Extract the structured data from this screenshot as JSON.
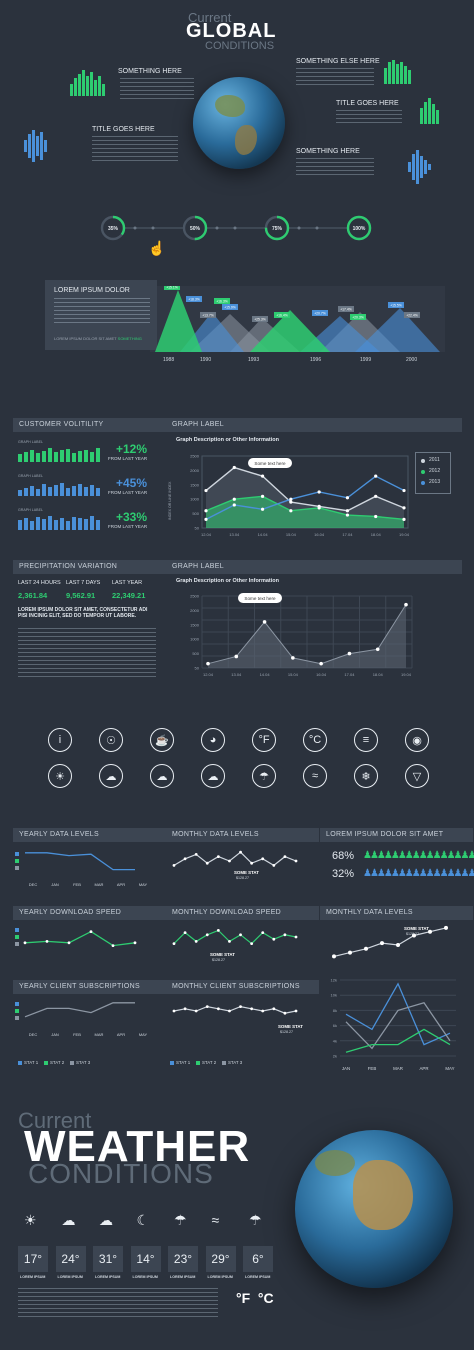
{
  "header": {
    "current": "Current",
    "global": "GLOBAL",
    "conditions": "CONDITIONS"
  },
  "globe_labels": {
    "something_here": "SOMETHING HERE",
    "something_else_here": "SOMETHING ELSE HERE",
    "title_goes_here_left": "TITLE GOES HERE",
    "title_goes_here_right": "TITLE GOES HERE",
    "something_here_right": "SOMETHING HERE"
  },
  "progress": {
    "steps": [
      "35%",
      "50%",
      "75%",
      "100%"
    ],
    "fractions": [
      0.35,
      0.5,
      0.75,
      1.0
    ]
  },
  "area_panel": {
    "title": "LOREM IPSUM DOLOR",
    "footer": "LOREM IPSUM DOLOR SIT AMET",
    "footer_accent": "SOMETHING",
    "years": [
      "1988",
      "1990",
      "1993",
      "1996",
      "1999",
      "2000"
    ],
    "tags": [
      "+15.1%",
      "+18.3%",
      "+13.7%",
      "+16.3%",
      "+15.9%",
      "+25.3%",
      "+16.4%",
      "+20.7%",
      "+17.4%",
      "+20.3%",
      "+15.5%",
      "+22.4%"
    ]
  },
  "customer": {
    "title": "CUSTOMER VOLITILITY",
    "rows": [
      {
        "label": "GRAPH LABEL",
        "pct": "+12%",
        "note": "FROM LAST YEAR"
      },
      {
        "label": "GRAPH LABEL",
        "pct": "+45%",
        "note": "FROM LAST YEAR"
      },
      {
        "label": "GRAPH LABEL",
        "pct": "+33%",
        "note": "FROM LAST YEAR"
      }
    ]
  },
  "graph1": {
    "title": "GRAPH LABEL",
    "desc": "Graph Description or Other Information",
    "callout": "Some text here",
    "ylabel": "INDEX OR LINE INDEX",
    "legend": [
      "2011",
      "2012",
      "2013"
    ],
    "legend_colors": [
      "#cfd6de",
      "#2ecc71",
      "#4a90d9"
    ]
  },
  "precip": {
    "title": "PRECIPITATION VARIATION",
    "heads": [
      "LAST 24 HOURS",
      "LAST 7 DAYS",
      "LAST YEAR"
    ],
    "values": [
      "2,361.84",
      "9,562.91",
      "22,349.21"
    ],
    "bold": "LOREM IPSUM DOLOR SIT AMET, CONSECTETUR ADI PISI INCINIG ELIT, SED DO TEMPOR UT LABORE."
  },
  "graph2": {
    "title": "GRAPH LABEL",
    "desc": "Graph Description or Other Information",
    "callout": "Some text here"
  },
  "chart_data": [
    {
      "type": "line",
      "x": [
        "12.04",
        "13.04",
        "14.04",
        "15.04",
        "16.04",
        "17.04",
        "18.04",
        "19.04"
      ],
      "ylim": [
        0,
        2500
      ],
      "yticks": [
        "2500",
        "2000",
        "1500",
        "1000",
        "500",
        "50"
      ],
      "series": [
        {
          "name": "2011",
          "values": [
            1300,
            2100,
            1800,
            900,
            750,
            600,
            1100,
            700
          ]
        },
        {
          "name": "2012",
          "values": [
            600,
            1000,
            1100,
            600,
            700,
            450,
            400,
            300
          ]
        },
        {
          "name": "2013",
          "values": [
            300,
            800,
            650,
            1000,
            1250,
            1050,
            1800,
            1300
          ]
        }
      ]
    },
    {
      "type": "area",
      "x": [
        "12.04",
        "13.04",
        "14.04",
        "15.04",
        "16.04",
        "17.04",
        "18.04",
        "19.04"
      ],
      "ylim": [
        0,
        2500
      ],
      "yticks": [
        "2500",
        "2000",
        "1500",
        "1000",
        "500",
        "50"
      ],
      "series": [
        {
          "values": [
            150,
            400,
            1600,
            350,
            150,
            500,
            650,
            2200
          ]
        }
      ]
    },
    {
      "type": "line",
      "title": "YEARLY DATA LEVELS",
      "categories": [
        "DEC",
        "JAN",
        "FEB",
        "MAR",
        "APR",
        "MAY"
      ],
      "series": [
        {
          "values": [
            0.9,
            0.9,
            0.8,
            0.85,
            0.3,
            0.3
          ]
        }
      ]
    }
  ],
  "icons_row1": [
    "info-icon",
    "lightbulb-icon",
    "footprints-icon",
    "piggy-bank-icon",
    "fahrenheit-icon",
    "celsius-icon",
    "traffic-light-icon",
    "broadcast-icon"
  ],
  "icons_row1_glyphs": [
    "i",
    "☉",
    "☕",
    "◕",
    "°F",
    "°C",
    "≡",
    "◉"
  ],
  "icons_row2": [
    "sun-icon",
    "cloud-sun-icon",
    "cloud-icon",
    "partly-cloudy-icon",
    "rain-icon",
    "wind-icon",
    "snow-icon",
    "tornado-icon"
  ],
  "icons_row2_glyphs": [
    "☀",
    "☁",
    "☁",
    "☁",
    "☂",
    "≈",
    "❄",
    "▽"
  ],
  "small_panels": {
    "yearly_data": "YEARLY DATA LEVELS",
    "monthly_data": "MONTHLY DATA LEVELS",
    "lorem": "LOREM IPSUM DOLOR SIT AMET",
    "pct_a": "68%",
    "pct_b": "32%",
    "yearly_download": "YEARLY DOWNLOAD SPEED",
    "monthly_download": "MONTHLY DOWNLOAD SPEED",
    "monthly_data2": "MONTHLY DATA LEVELS",
    "yearly_client": "YEARLY CLIENT SUBSCRIPTIONS",
    "monthly_client": "MONTHLY CLIENT SUBSCRIPTIONS",
    "some_stat": "SOME STAT",
    "some_stat_value": "$128.27",
    "months": [
      "DEC",
      "JAN",
      "FEB",
      "MAR",
      "APR",
      "MAY"
    ],
    "big_months": [
      "JAN",
      "FEB",
      "MAR",
      "APR",
      "MAY"
    ],
    "big_yticks": [
      "12k",
      "10k",
      "8k",
      "6k",
      "4k",
      "2k"
    ],
    "stats": [
      "STAT 1",
      "STAT 2",
      "STAT 3"
    ]
  },
  "weather": {
    "current": "Current",
    "weather": "WEATHER",
    "conditions": "CONDITIONS",
    "temps": [
      "17°",
      "24°",
      "31°",
      "14°",
      "23°",
      "29°",
      "6°"
    ],
    "temp_label": "LOREM IPSUM",
    "icons": [
      "sun-icon",
      "cloud-sun-icon",
      "cloud-icon",
      "moon-cloud-icon",
      "rain-icon",
      "wind-icon",
      "rain-cloud-icon"
    ],
    "glyphs": [
      "☀",
      "☁",
      "☁",
      "☾",
      "☂",
      "≈",
      "☂"
    ],
    "units": "°F  °C"
  },
  "colors": {
    "bg": "#2b323d",
    "panel": "#3c4552",
    "green": "#2ecc71",
    "blue": "#4a90d9",
    "text": "#cfd6de"
  }
}
